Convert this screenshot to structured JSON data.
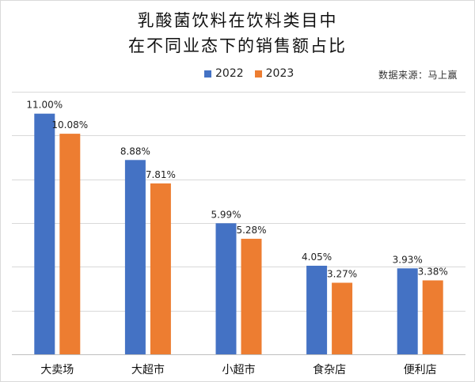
{
  "title_lines": [
    "乳酸菌饮料在饮料类目中",
    "在不同业态下的销售额占比"
  ],
  "source": "数据来源：马上赢",
  "colors": {
    "s2022": "#4472c4",
    "s2023": "#ed7d31",
    "grid": "#d9d9d9"
  },
  "chart_data": {
    "type": "bar",
    "title": "乳酸菌饮料在饮料类目中在不同业态下的销售额占比",
    "categories": [
      "大卖场",
      "大超市",
      "小超市",
      "食杂店",
      "便利店"
    ],
    "series": [
      {
        "name": "2022",
        "values": [
          11.0,
          8.88,
          5.99,
          4.05,
          3.93
        ],
        "labels": [
          "11.00%",
          "8.88%",
          "5.99%",
          "4.05%",
          "3.93%"
        ],
        "color": "#4472c4"
      },
      {
        "name": "2023",
        "values": [
          10.08,
          7.81,
          5.28,
          3.27,
          3.38
        ],
        "labels": [
          "10.08%",
          "7.81%",
          "5.28%",
          "3.27%",
          "3.38%"
        ],
        "color": "#ed7d31"
      }
    ],
    "xlabel": "",
    "ylabel": "",
    "ylim": [
      0,
      12
    ],
    "grid": true,
    "yaxis_labels_shown": false,
    "legend_position": "top"
  }
}
